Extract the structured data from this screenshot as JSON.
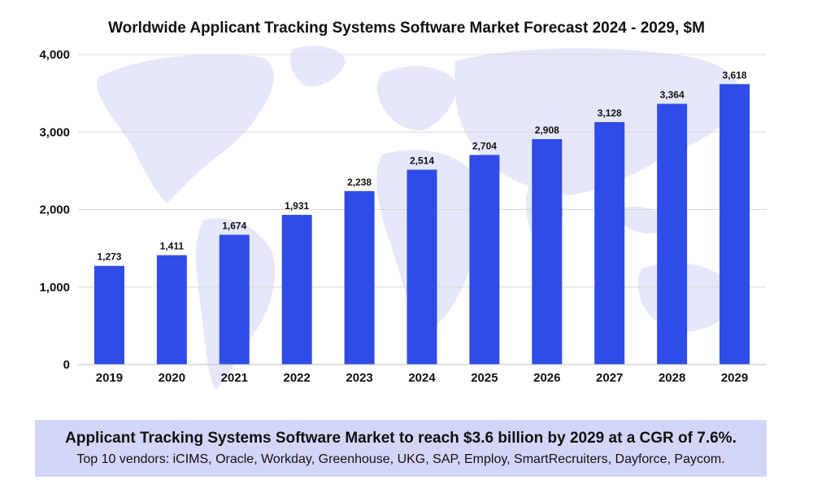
{
  "chart_data": {
    "type": "bar",
    "title": "Worldwide Applicant Tracking Systems Software Market Forecast 2024 - 2029, $M",
    "categories": [
      "2019",
      "2020",
      "2021",
      "2022",
      "2023",
      "2024",
      "2025",
      "2026",
      "2027",
      "2028",
      "2029"
    ],
    "values": [
      1273,
      1411,
      1674,
      1931,
      2238,
      2514,
      2704,
      2908,
      3128,
      3364,
      3618
    ],
    "value_labels": [
      "1,273",
      "1,411",
      "1,674",
      "1,931",
      "2,238",
      "2,514",
      "2,704",
      "2,908",
      "3,128",
      "3,364",
      "3,618"
    ],
    "yticks": [
      0,
      1000,
      2000,
      3000,
      4000
    ],
    "ytick_labels": [
      "0",
      "1,000",
      "2,000",
      "3,000",
      "4,000"
    ],
    "ylim": [
      0,
      4000
    ],
    "grid": true,
    "xlabel": "",
    "ylabel": "",
    "bar_color": "#2f4ce6",
    "background_map_color": "#e6e7fb",
    "grid_color": "#d8d8d8"
  },
  "summary": {
    "headline": "Applicant Tracking Systems Software Market to reach $3.6 billion by 2029 at a CGR of 7.6%.",
    "vendors": "Top 10 vendors: iCIMS, Oracle, Workday, Greenhouse, UKG, SAP, Employ, SmartRecruiters, Dayforce, Paycom.",
    "background_color": "#d4d6f7"
  }
}
